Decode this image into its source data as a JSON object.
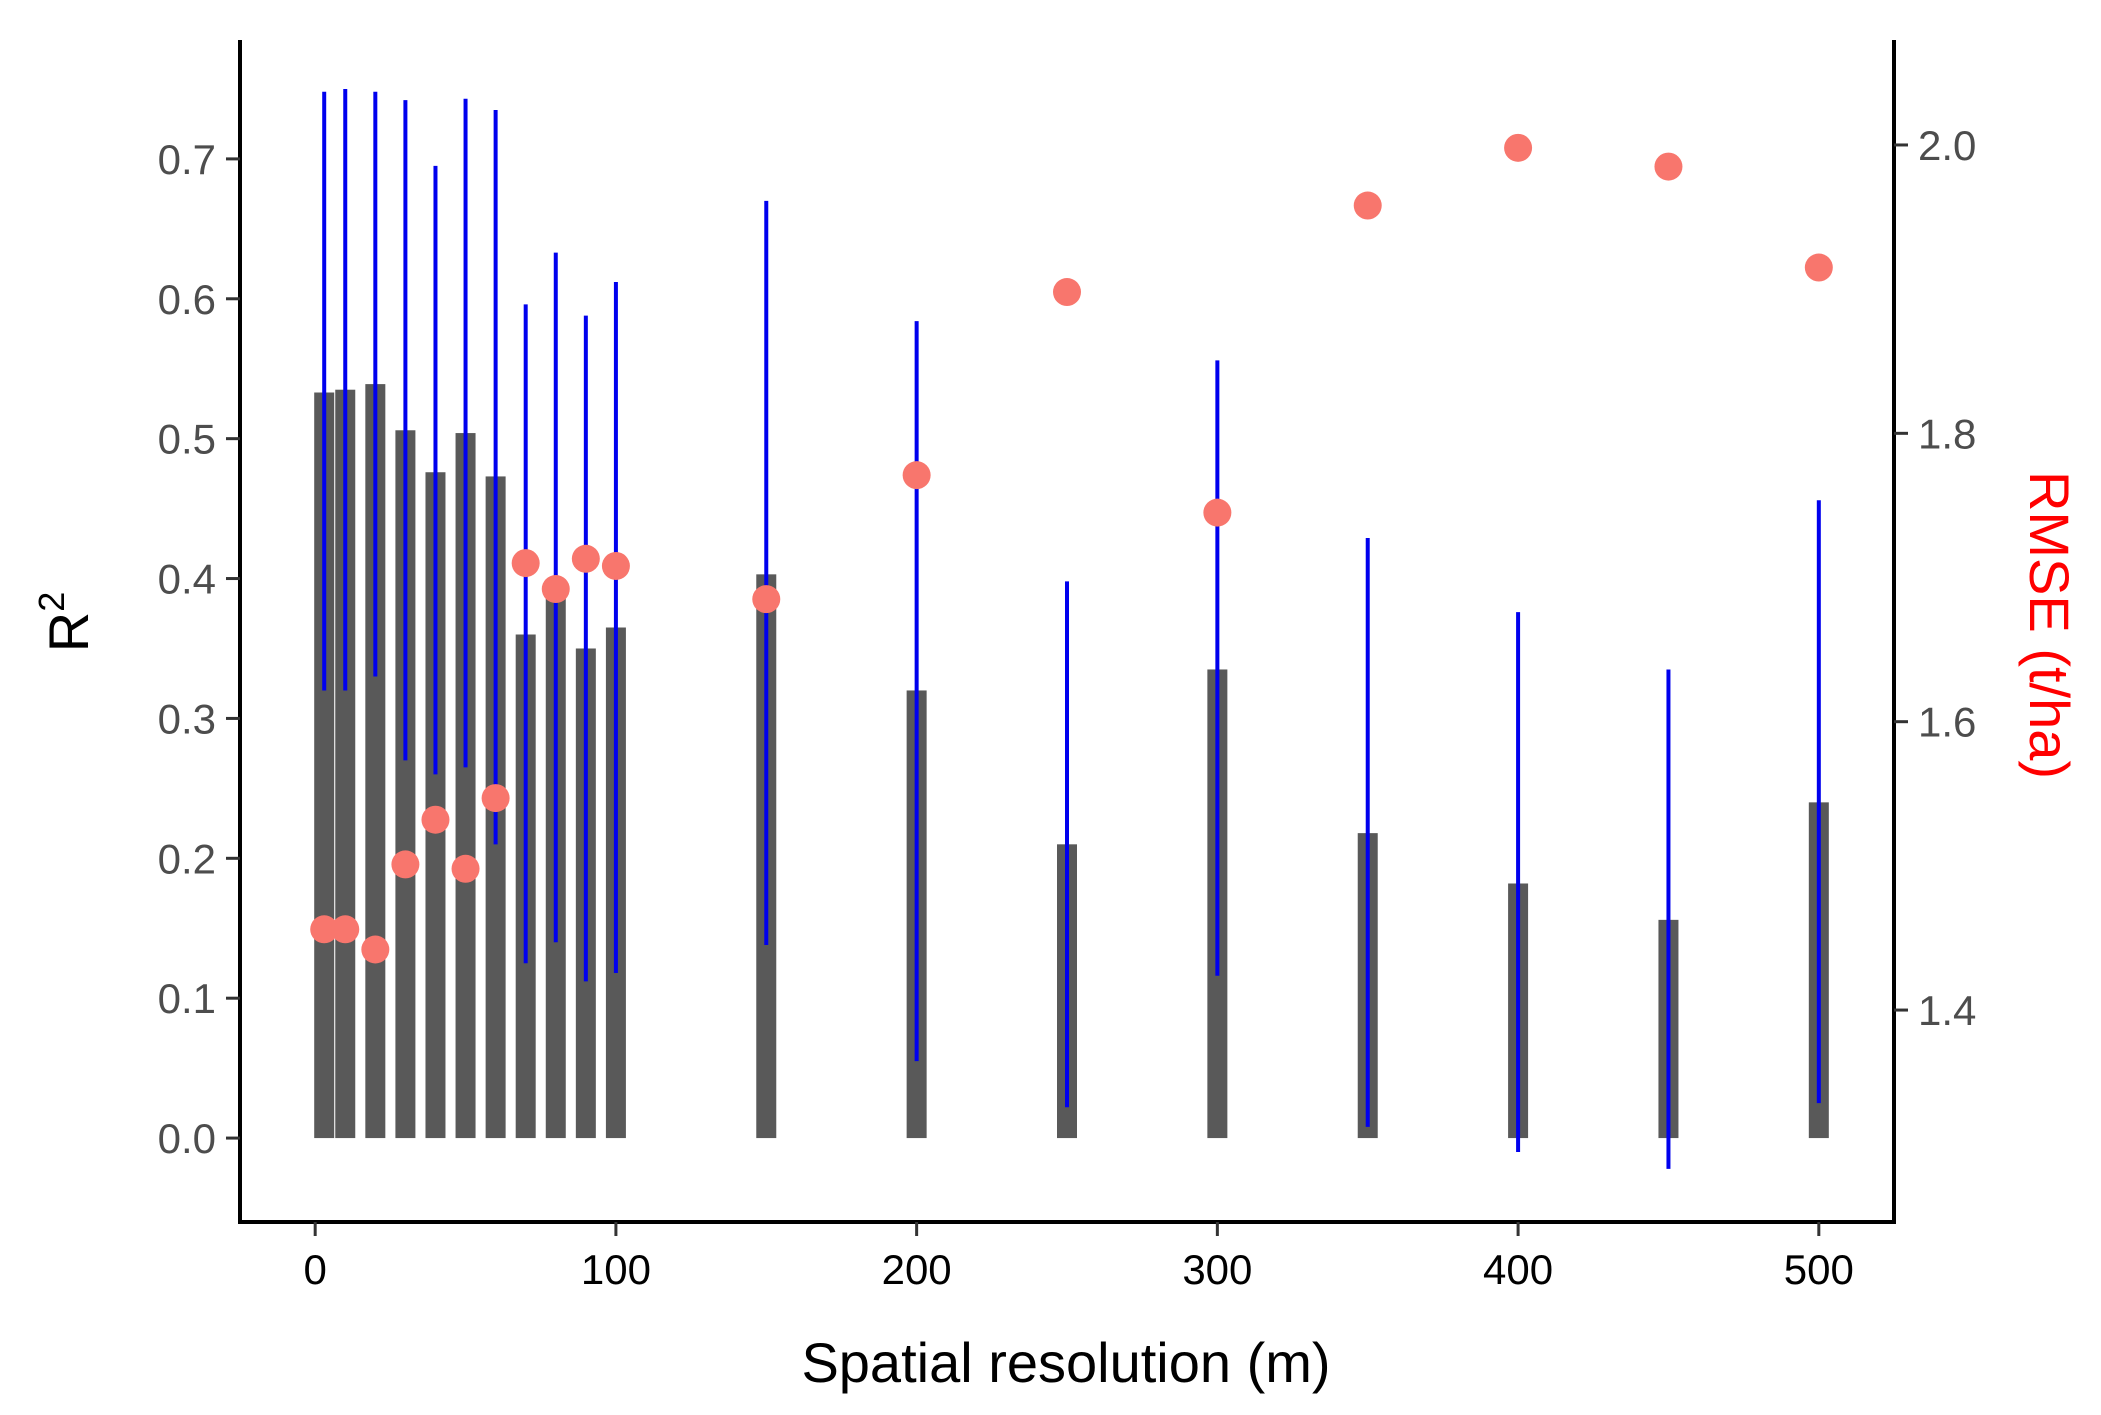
{
  "chart_data": {
    "type": "bar",
    "xlabel": "Spatial resolution (m)",
    "ylabel_main": "R",
    "ylabel_sup": "2",
    "y2label": "RMSE (t/ha)",
    "xlim": [
      -25,
      525
    ],
    "ylim": [
      -0.06,
      0.785
    ],
    "y2lim": [
      1.253,
      2.0728
    ],
    "x_ticks": [
      0,
      100,
      200,
      300,
      400,
      500
    ],
    "x_tick_labels": [
      "0",
      "100",
      "200",
      "300",
      "400",
      "500"
    ],
    "y_ticks": [
      0.0,
      0.1,
      0.2,
      0.3,
      0.4,
      0.5,
      0.6,
      0.7
    ],
    "y_tick_labels": [
      "0.0",
      "0.1",
      "0.2",
      "0.3",
      "0.4",
      "0.5",
      "0.6",
      "0.7"
    ],
    "y2_ticks": [
      1.4,
      1.6,
      1.8,
      2.0
    ],
    "y2_tick_labels": [
      "1.4",
      "1.6",
      "1.8",
      "2.0"
    ],
    "x": [
      3,
      10,
      20,
      30,
      40,
      50,
      60,
      70,
      80,
      90,
      100,
      150,
      200,
      250,
      300,
      350,
      400,
      450,
      500
    ],
    "series": [
      {
        "name": "R2",
        "axis": "left",
        "values": [
          0.533,
          0.535,
          0.539,
          0.506,
          0.476,
          0.504,
          0.473,
          0.36,
          0.39,
          0.35,
          0.365,
          0.403,
          0.32,
          0.21,
          0.335,
          0.218,
          0.182,
          0.156,
          0.24
        ],
        "error_low": [
          0.32,
          0.32,
          0.33,
          0.27,
          0.26,
          0.265,
          0.21,
          0.125,
          0.14,
          0.112,
          0.118,
          0.138,
          0.055,
          0.022,
          0.116,
          0.008,
          -0.01,
          -0.022,
          0.025
        ],
        "error_high": [
          0.748,
          0.75,
          0.748,
          0.742,
          0.695,
          0.743,
          0.735,
          0.596,
          0.633,
          0.588,
          0.612,
          0.67,
          0.584,
          0.398,
          0.556,
          0.429,
          0.376,
          0.335,
          0.456
        ]
      },
      {
        "name": "RMSE",
        "axis": "right",
        "values": [
          1.456,
          1.456,
          1.442,
          1.501,
          1.532,
          1.498,
          1.547,
          1.71,
          1.692,
          1.713,
          1.708,
          1.685,
          1.771,
          1.898,
          1.745,
          1.958,
          1.998,
          1.985,
          1.915
        ]
      }
    ],
    "colors": {
      "bar": "#595959",
      "error": "#0000ee",
      "point": "#f8766d",
      "axis": "#000000",
      "tick_label": "#4d4d4d",
      "y2_title": "#ff0000"
    }
  }
}
